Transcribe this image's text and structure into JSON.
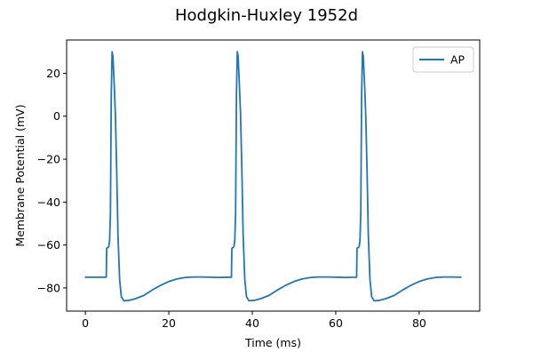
{
  "chart_data": {
    "type": "line",
    "title": "Hodgkin-Huxley 1952d",
    "xlabel": "Time (ms)",
    "ylabel": "Membrane Potential (mV)",
    "xlim": [
      -4.5,
      94.5
    ],
    "ylim": [
      -90.8,
      35.5
    ],
    "xticks": [
      0,
      20,
      40,
      60,
      80
    ],
    "yticks": [
      -80,
      -60,
      -40,
      -20,
      0,
      20
    ],
    "grid": false,
    "legend": {
      "position": "top-right",
      "entries": [
        "AP"
      ]
    },
    "series": [
      {
        "name": "AP",
        "color": "#1f77b4",
        "points": [
          [
            0,
            -75
          ],
          [
            5.0,
            -75
          ],
          [
            5.1,
            -61.5
          ],
          [
            5.4,
            -61.2
          ],
          [
            5.6,
            -60.8
          ],
          [
            5.8,
            -58
          ],
          [
            6.0,
            -45
          ],
          [
            6.2,
            10
          ],
          [
            6.4,
            30
          ],
          [
            6.6,
            28
          ],
          [
            6.9,
            15
          ],
          [
            7.2,
            0
          ],
          [
            7.5,
            -25
          ],
          [
            7.8,
            -55
          ],
          [
            8.2,
            -76
          ],
          [
            8.6,
            -84
          ],
          [
            9.2,
            -86
          ],
          [
            10.5,
            -85.8
          ],
          [
            12,
            -85
          ],
          [
            14,
            -83.5
          ],
          [
            16,
            -81
          ],
          [
            18,
            -78.8
          ],
          [
            20,
            -77
          ],
          [
            22,
            -75.8
          ],
          [
            24,
            -75.1
          ],
          [
            26,
            -74.9
          ],
          [
            28,
            -74.9
          ],
          [
            30,
            -75
          ],
          [
            32,
            -75.1
          ],
          [
            35.0,
            -75
          ],
          [
            35.1,
            -61.5
          ],
          [
            35.4,
            -61.2
          ],
          [
            35.6,
            -60.8
          ],
          [
            35.8,
            -58
          ],
          [
            36.0,
            -45
          ],
          [
            36.2,
            10
          ],
          [
            36.4,
            30
          ],
          [
            36.6,
            28
          ],
          [
            36.9,
            15
          ],
          [
            37.2,
            0
          ],
          [
            37.5,
            -25
          ],
          [
            37.8,
            -55
          ],
          [
            38.2,
            -76
          ],
          [
            38.6,
            -84
          ],
          [
            39.2,
            -86
          ],
          [
            40.5,
            -85.8
          ],
          [
            42,
            -85
          ],
          [
            44,
            -83.5
          ],
          [
            46,
            -81
          ],
          [
            48,
            -78.8
          ],
          [
            50,
            -77
          ],
          [
            52,
            -75.8
          ],
          [
            54,
            -75.1
          ],
          [
            56,
            -74.9
          ],
          [
            58,
            -74.9
          ],
          [
            60,
            -75
          ],
          [
            62,
            -75.1
          ],
          [
            65.0,
            -75
          ],
          [
            65.1,
            -61.5
          ],
          [
            65.4,
            -61.2
          ],
          [
            65.6,
            -60.8
          ],
          [
            65.8,
            -58
          ],
          [
            66.0,
            -45
          ],
          [
            66.2,
            10
          ],
          [
            66.4,
            30
          ],
          [
            66.6,
            28
          ],
          [
            66.9,
            15
          ],
          [
            67.2,
            0
          ],
          [
            67.5,
            -25
          ],
          [
            67.8,
            -55
          ],
          [
            68.2,
            -76
          ],
          [
            68.6,
            -84
          ],
          [
            69.2,
            -86
          ],
          [
            70.5,
            -85.8
          ],
          [
            72,
            -85
          ],
          [
            74,
            -83.5
          ],
          [
            76,
            -81
          ],
          [
            78,
            -78.8
          ],
          [
            80,
            -77
          ],
          [
            82,
            -75.8
          ],
          [
            84,
            -75.1
          ],
          [
            86,
            -74.9
          ],
          [
            88,
            -74.9
          ],
          [
            90,
            -75
          ]
        ]
      }
    ]
  }
}
